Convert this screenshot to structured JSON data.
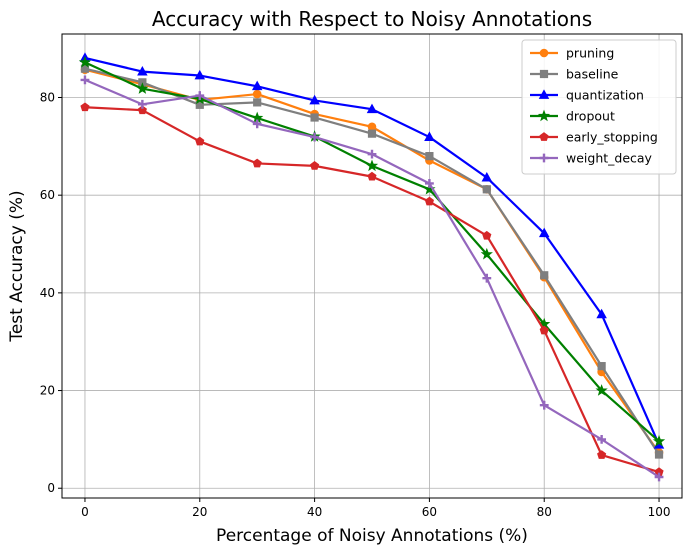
{
  "chart_data": {
    "type": "line",
    "title": "Accuracy with Respect to Noisy Annotations",
    "xlabel": "Percentage of Noisy Annotations (%)",
    "ylabel": "Test Accuracy (%)",
    "xlim": [
      -4,
      104
    ],
    "ylim": [
      -2,
      93
    ],
    "xticks": [
      0,
      20,
      40,
      60,
      80,
      100
    ],
    "yticks": [
      0,
      20,
      40,
      60,
      80
    ],
    "grid": true,
    "legend_position": "top-right",
    "x": [
      0,
      10,
      20,
      30,
      40,
      50,
      60,
      70,
      80,
      90,
      100
    ],
    "series": [
      {
        "name": "pruning",
        "color": "#ff7f0e",
        "marker": "circle",
        "values": [
          85.7,
          82.7,
          79.5,
          80.7,
          76.6,
          74.0,
          67.1,
          61.2,
          43.2,
          23.8,
          7.3
        ]
      },
      {
        "name": "baseline",
        "color": "#7f7f7f",
        "marker": "square",
        "values": [
          85.9,
          83.1,
          78.5,
          79.0,
          75.9,
          72.6,
          68.0,
          61.2,
          43.6,
          25.0,
          6.9
        ]
      },
      {
        "name": "quantization",
        "color": "#0000ff",
        "marker": "triangle",
        "values": [
          88.1,
          85.3,
          84.5,
          82.3,
          79.4,
          77.6,
          71.9,
          63.6,
          52.2,
          35.6,
          8.9
        ]
      },
      {
        "name": "dropout",
        "color": "#008000",
        "marker": "star",
        "values": [
          87.2,
          81.8,
          79.7,
          75.8,
          72.0,
          66.0,
          61.2,
          47.9,
          33.6,
          20.0,
          9.6
        ]
      },
      {
        "name": "early_stopping",
        "color": "#d62728",
        "marker": "pentagon",
        "values": [
          78.0,
          77.4,
          71.0,
          66.5,
          66.0,
          63.8,
          58.7,
          51.7,
          32.3,
          6.8,
          3.3
        ]
      },
      {
        "name": "weight_decay",
        "color": "#9467bd",
        "marker": "plus",
        "values": [
          83.6,
          78.6,
          80.4,
          74.6,
          71.9,
          68.4,
          62.4,
          43.0,
          17.0,
          10.0,
          2.3
        ]
      }
    ]
  }
}
